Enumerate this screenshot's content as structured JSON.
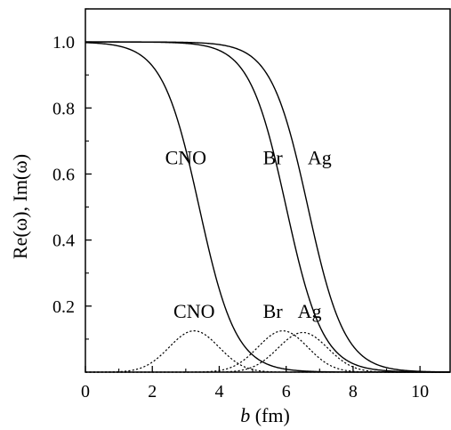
{
  "chart_data": {
    "type": "line",
    "xlabel": {
      "var": "b",
      "unit": " (fm)"
    },
    "ylabel": "Re(ω), Im(ω)",
    "xlim": [
      0,
      10.9
    ],
    "ylim": [
      0,
      1.1
    ],
    "xticks": [
      0,
      2,
      4,
      6,
      8,
      10
    ],
    "yticks": [
      0.2,
      0.4,
      0.6,
      0.8,
      1.0
    ],
    "xtick_labels": [
      "0",
      "2",
      "4",
      "6",
      "8",
      "10"
    ],
    "ytick_labels": [
      "0.2",
      "0.4",
      "0.6",
      "0.8",
      "1.0"
    ],
    "grid": false,
    "series": [
      {
        "name": "CNO",
        "part": "Re",
        "style": "solid",
        "R": 3.4,
        "a": 0.55,
        "amp": 1.0
      },
      {
        "name": "Br",
        "part": "Re",
        "style": "solid",
        "R": 6.0,
        "a": 0.55,
        "amp": 1.0
      },
      {
        "name": "Ag",
        "part": "Re",
        "style": "solid",
        "R": 6.65,
        "a": 0.55,
        "amp": 1.0
      },
      {
        "name": "CNO",
        "part": "Im",
        "style": "dotted",
        "peak_x": 3.25,
        "peak_y": 0.125,
        "width": 1.05
      },
      {
        "name": "Br",
        "part": "Im",
        "style": "dotted",
        "peak_x": 5.9,
        "peak_y": 0.125,
        "width": 1.05
      },
      {
        "name": "Ag",
        "part": "Im",
        "style": "dotted",
        "peak_x": 6.5,
        "peak_y": 0.12,
        "width": 1.05
      }
    ],
    "annotations": [
      {
        "text": "CNO",
        "x": 3.0,
        "y": 0.63
      },
      {
        "text": "Br",
        "x": 5.6,
        "y": 0.63
      },
      {
        "text": "Ag",
        "x": 7.0,
        "y": 0.63
      },
      {
        "text": "CNO",
        "x": 3.25,
        "y": 0.165
      },
      {
        "text": "Br",
        "x": 5.6,
        "y": 0.165
      },
      {
        "text": "Ag",
        "x": 6.7,
        "y": 0.165
      }
    ]
  }
}
